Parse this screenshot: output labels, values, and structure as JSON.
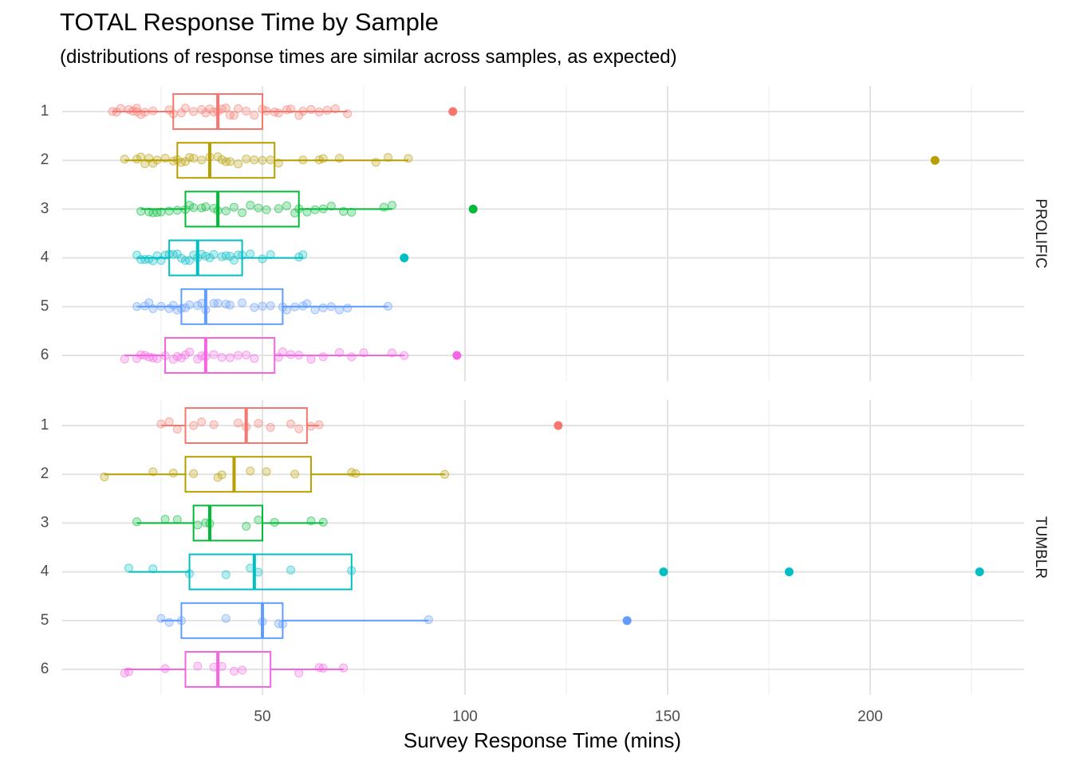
{
  "chart_data": {
    "type": "boxplot",
    "title": "TOTAL Response Time by Sample",
    "subtitle": "(distributions of response times are similar across samples, as expected)",
    "xlabel": "Survey Response Time (mins)",
    "ylabel": "",
    "xlim": [
      0,
      235
    ],
    "x_ticks": [
      50,
      100,
      150,
      200
    ],
    "grid": true,
    "legend": "none",
    "colors": [
      "#F8766D",
      "#B79F00",
      "#00BA38",
      "#00BFC4",
      "#619CFF",
      "#F564E3"
    ],
    "panels": [
      {
        "name": "PROLIFIC",
        "groups": [
          {
            "label": "1",
            "q1": 28,
            "median": 39,
            "q3": 50,
            "whisker_low": 13,
            "whisker_high": 71,
            "outliers": [
              97
            ],
            "points": [
              13,
              14,
              15,
              17,
              18,
              19,
              19,
              20,
              21,
              23,
              27,
              28,
              30,
              31,
              33,
              35,
              36,
              37,
              38,
              39,
              40,
              41,
              42,
              43,
              44,
              46,
              48,
              50,
              51,
              53,
              54,
              56,
              57,
              59,
              60,
              62,
              64,
              66,
              68,
              71
            ]
          },
          {
            "label": "2",
            "q1": 29,
            "median": 37,
            "q3": 53,
            "whisker_low": 16,
            "whisker_high": 86,
            "outliers": [
              216
            ],
            "points": [
              16,
              19,
              20,
              21,
              22,
              23,
              24,
              26,
              28,
              29,
              30,
              31,
              32,
              33,
              35,
              37,
              39,
              40,
              41,
              42,
              44,
              46,
              48,
              50,
              52,
              54,
              60,
              64,
              65,
              69,
              78,
              81,
              86
            ]
          },
          {
            "label": "3",
            "q1": 31,
            "median": 39,
            "q3": 59,
            "whisker_low": 20,
            "whisker_high": 82,
            "outliers": [
              102
            ],
            "points": [
              20,
              22,
              23,
              24,
              25,
              27,
              29,
              31,
              32,
              33,
              35,
              36,
              38,
              39,
              41,
              43,
              45,
              47,
              49,
              51,
              54,
              56,
              58,
              59,
              61,
              63,
              65,
              67,
              70,
              72,
              80,
              82
            ]
          },
          {
            "label": "4",
            "q1": 27,
            "median": 34,
            "q3": 45,
            "whisker_low": 19,
            "whisker_high": 60,
            "outliers": [
              85
            ],
            "points": [
              19,
              20,
              21,
              22,
              23,
              24,
              25,
              26,
              27,
              28,
              29,
              30,
              31,
              32,
              33,
              34,
              35,
              36,
              37,
              38,
              40,
              41,
              42,
              43,
              44,
              45,
              47,
              50,
              52,
              59,
              60
            ]
          },
          {
            "label": "5",
            "q1": 30,
            "median": 36,
            "q3": 55,
            "whisker_low": 19,
            "whisker_high": 81,
            "outliers": [],
            "points": [
              19,
              21,
              22,
              23,
              25,
              27,
              28,
              29,
              30,
              31,
              32,
              34,
              35,
              36,
              38,
              39,
              41,
              42,
              45,
              48,
              50,
              52,
              55,
              56,
              58,
              60,
              61,
              63,
              65,
              67,
              69,
              71,
              81
            ]
          },
          {
            "label": "6",
            "q1": 26,
            "median": 36,
            "q3": 53,
            "whisker_low": 16,
            "whisker_high": 85,
            "outliers": [
              98
            ],
            "points": [
              16,
              19,
              20,
              21,
              22,
              23,
              24,
              26,
              28,
              29,
              30,
              31,
              32,
              34,
              35,
              36,
              38,
              40,
              42,
              44,
              46,
              48,
              54,
              55,
              57,
              59,
              62,
              65,
              69,
              72,
              75,
              82,
              85
            ]
          }
        ]
      },
      {
        "name": "TUMBLR",
        "groups": [
          {
            "label": "1",
            "q1": 31,
            "median": 46,
            "q3": 61,
            "whisker_low": 25,
            "whisker_high": 64,
            "outliers": [
              123
            ],
            "points": [
              25,
              27,
              29,
              33,
              35,
              38,
              44,
              46,
              49,
              52,
              57,
              59,
              62,
              64
            ]
          },
          {
            "label": "2",
            "q1": 31,
            "median": 43,
            "q3": 62,
            "whisker_low": 11,
            "whisker_high": 95,
            "outliers": [],
            "points": [
              11,
              23,
              28,
              33,
              39,
              40,
              47,
              51,
              58,
              72,
              73,
              95
            ]
          },
          {
            "label": "3",
            "q1": 33,
            "median": 37,
            "q3": 50,
            "whisker_low": 19,
            "whisker_high": 65,
            "outliers": [],
            "points": [
              19,
              26,
              29,
              34,
              36,
              37,
              46,
              49,
              53,
              62,
              65
            ]
          },
          {
            "label": "4",
            "q1": 32,
            "median": 48,
            "q3": 72,
            "whisker_low": 17,
            "whisker_high": 72,
            "outliers": [
              149,
              180,
              227
            ],
            "points": [
              17,
              23,
              32,
              41,
              47,
              49,
              57,
              72
            ]
          },
          {
            "label": "5",
            "q1": 30,
            "median": 50,
            "q3": 55,
            "whisker_low": 25,
            "whisker_high": 91,
            "outliers": [
              140
            ],
            "points": [
              25,
              27,
              30,
              41,
              50,
              54,
              55,
              91
            ]
          },
          {
            "label": "6",
            "q1": 31,
            "median": 39,
            "q3": 52,
            "whisker_low": 16,
            "whisker_high": 70,
            "outliers": [],
            "points": [
              16,
              17,
              26,
              34,
              38,
              40,
              43,
              45,
              59,
              64,
              65,
              70
            ]
          }
        ]
      }
    ]
  }
}
